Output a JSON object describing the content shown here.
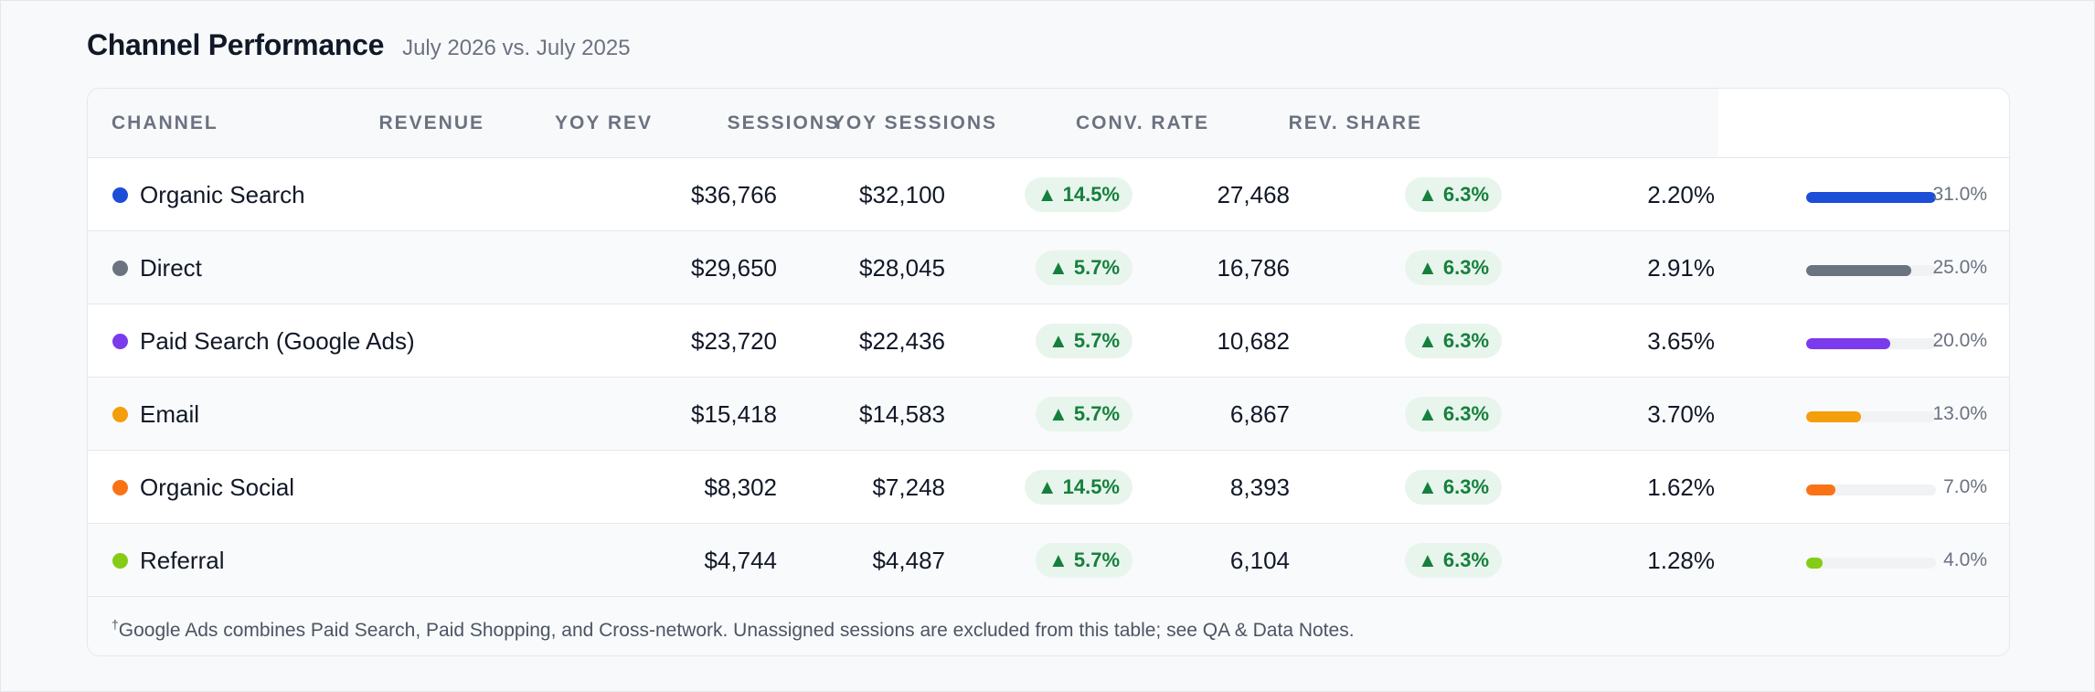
{
  "header": {
    "title": "Channel Performance",
    "subtitle": "July 2026 vs. July 2025"
  },
  "table": {
    "columns": [
      "CHANNEL",
      "REVENUE",
      "YOY REV",
      "SESSIONS",
      "YOY SESSIONS",
      "CONV. RATE",
      "REV. SHARE"
    ],
    "rows": [
      {
        "channel": "Organic Search",
        "color": "#1d4ed8",
        "revenue": "$36,766",
        "yoy_rev": "$32,100",
        "sessions_change": "▲ 14.5%",
        "sessions": "27,468",
        "yoy_sessions_change": "▲ 6.3%",
        "conv_rate": "2.20%",
        "rev_share": "31.0%",
        "share_value": 31.0
      },
      {
        "channel": "Direct",
        "color": "#6b7280",
        "revenue": "$29,650",
        "yoy_rev": "$28,045",
        "sessions_change": "▲ 5.7%",
        "sessions": "16,786",
        "yoy_sessions_change": "▲ 6.3%",
        "conv_rate": "2.91%",
        "rev_share": "25.0%",
        "share_value": 25.0
      },
      {
        "channel": "Paid Search (Google Ads)",
        "color": "#7c3aed",
        "revenue": "$23,720",
        "yoy_rev": "$22,436",
        "sessions_change": "▲ 5.7%",
        "sessions": "10,682",
        "yoy_sessions_change": "▲ 6.3%",
        "conv_rate": "3.65%",
        "rev_share": "20.0%",
        "share_value": 20.0
      },
      {
        "channel": "Email",
        "color": "#f59e0b",
        "revenue": "$15,418",
        "yoy_rev": "$14,583",
        "sessions_change": "▲ 5.7%",
        "sessions": "6,867",
        "yoy_sessions_change": "▲ 6.3%",
        "conv_rate": "3.70%",
        "rev_share": "13.0%",
        "share_value": 13.0
      },
      {
        "channel": "Organic Social",
        "color": "#f97316",
        "revenue": "$8,302",
        "yoy_rev": "$7,248",
        "sessions_change": "▲ 14.5%",
        "sessions": "8,393",
        "yoy_sessions_change": "▲ 6.3%",
        "conv_rate": "1.62%",
        "rev_share": "7.0%",
        "share_value": 7.0
      },
      {
        "channel": "Referral",
        "color": "#84cc16",
        "revenue": "$4,744",
        "yoy_rev": "$4,487",
        "sessions_change": "▲ 5.7%",
        "sessions": "6,104",
        "yoy_sessions_change": "▲ 6.3%",
        "conv_rate": "1.28%",
        "rev_share": "4.0%",
        "share_value": 4.0
      }
    ]
  },
  "footer": {
    "marker": "†",
    "note": "Google Ads combines Paid Search, Paid Shopping, and Cross-network. Unassigned sessions are excluded from this table; see QA & Data Notes."
  }
}
